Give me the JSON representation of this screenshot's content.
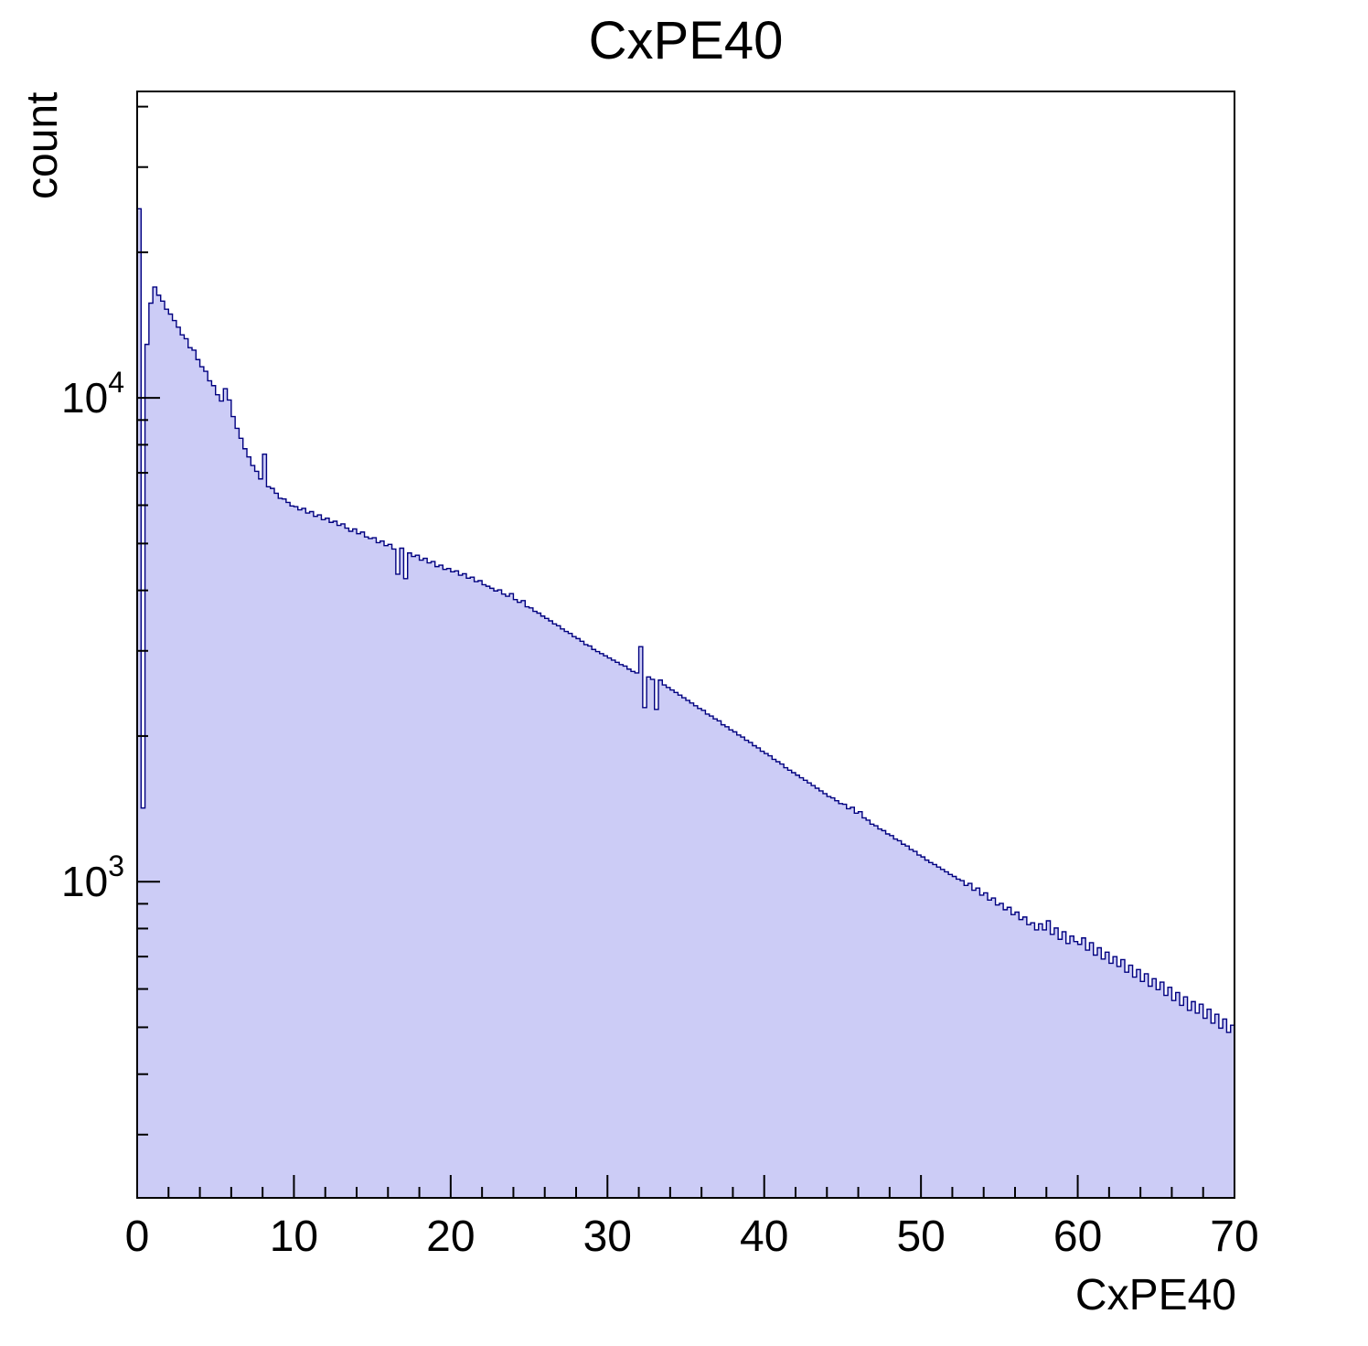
{
  "chart_data": {
    "type": "histogram",
    "title": "CxPE40",
    "xlabel": "CxPE40",
    "ylabel": "count",
    "x_range": [
      0,
      70
    ],
    "y_scale": "log",
    "y_range": [
      222,
      43000
    ],
    "bin_start": 0,
    "bin_width": 0.25,
    "n_bins": 280,
    "x_major_ticks": [
      0,
      10,
      20,
      30,
      40,
      50,
      60,
      70
    ],
    "x_minor_tick_step": 2,
    "y_major_ticks": [
      {
        "value": 1000,
        "mantissa": "10",
        "exponent": "3"
      },
      {
        "value": 10000,
        "mantissa": "10",
        "exponent": "4"
      }
    ],
    "legend": "none",
    "grid": "off",
    "colors": {
      "fill": "#ccccf6",
      "stroke": "#000080",
      "axis": "#000000"
    },
    "values": [
      24600,
      1420,
      12900,
      15700,
      16950,
      16300,
      15850,
      15250,
      14900,
      14450,
      14000,
      13500,
      13250,
      12700,
      12550,
      12000,
      11600,
      11350,
      10850,
      10600,
      10150,
      9850,
      10450,
      9900,
      9150,
      8650,
      8250,
      7850,
      7550,
      7250,
      7050,
      6800,
      7650,
      6550,
      6500,
      6350,
      6200,
      6180,
      6080,
      5980,
      5960,
      5870,
      5910,
      5780,
      5820,
      5690,
      5730,
      5600,
      5640,
      5530,
      5560,
      5450,
      5490,
      5380,
      5300,
      5360,
      5240,
      5280,
      5160,
      5120,
      5140,
      5020,
      5060,
      4950,
      4980,
      4870,
      4320,
      4890,
      4230,
      4780,
      4700,
      4730,
      4620,
      4660,
      4560,
      4590,
      4480,
      4510,
      4420,
      4440,
      4370,
      4390,
      4300,
      4330,
      4240,
      4260,
      4170,
      4190,
      4110,
      4080,
      4040,
      3990,
      4010,
      3930,
      3890,
      3940,
      3830,
      3780,
      3810,
      3700,
      3680,
      3620,
      3590,
      3540,
      3500,
      3460,
      3410,
      3380,
      3330,
      3290,
      3260,
      3210,
      3180,
      3140,
      3090,
      3070,
      3020,
      2990,
      2960,
      2930,
      2900,
      2870,
      2840,
      2810,
      2790,
      2750,
      2720,
      2700,
      3060,
      2290,
      2650,
      2620,
      2270,
      2610,
      2550,
      2520,
      2490,
      2460,
      2430,
      2400,
      2370,
      2340,
      2310,
      2280,
      2260,
      2220,
      2200,
      2170,
      2150,
      2110,
      2090,
      2060,
      2040,
      2010,
      1990,
      1960,
      1940,
      1910,
      1890,
      1860,
      1840,
      1820,
      1790,
      1770,
      1750,
      1720,
      1700,
      1680,
      1660,
      1640,
      1620,
      1600,
      1580,
      1560,
      1540,
      1520,
      1500,
      1490,
      1470,
      1450,
      1445,
      1415,
      1425,
      1385,
      1395,
      1355,
      1340,
      1315,
      1305,
      1285,
      1275,
      1255,
      1245,
      1225,
      1215,
      1195,
      1185,
      1165,
      1155,
      1135,
      1125,
      1108,
      1095,
      1085,
      1072,
      1060,
      1048,
      1035,
      1025,
      1012,
      1005,
      982,
      992,
      960,
      970,
      938,
      948,
      916,
      925,
      895,
      902,
      875,
      885,
      855,
      865,
      835,
      845,
      815,
      822,
      795,
      818,
      795,
      830,
      778,
      802,
      760,
      788,
      745,
      772,
      752,
      742,
      765,
      722,
      748,
      705,
      730,
      692,
      715,
      678,
      700,
      668,
      690,
      650,
      672,
      635,
      658,
      622,
      645,
      608,
      630,
      598,
      620,
      582,
      605,
      568,
      590,
      555,
      578,
      542,
      565,
      535,
      558,
      522,
      545,
      510,
      532,
      498,
      520,
      488,
      505
    ]
  }
}
